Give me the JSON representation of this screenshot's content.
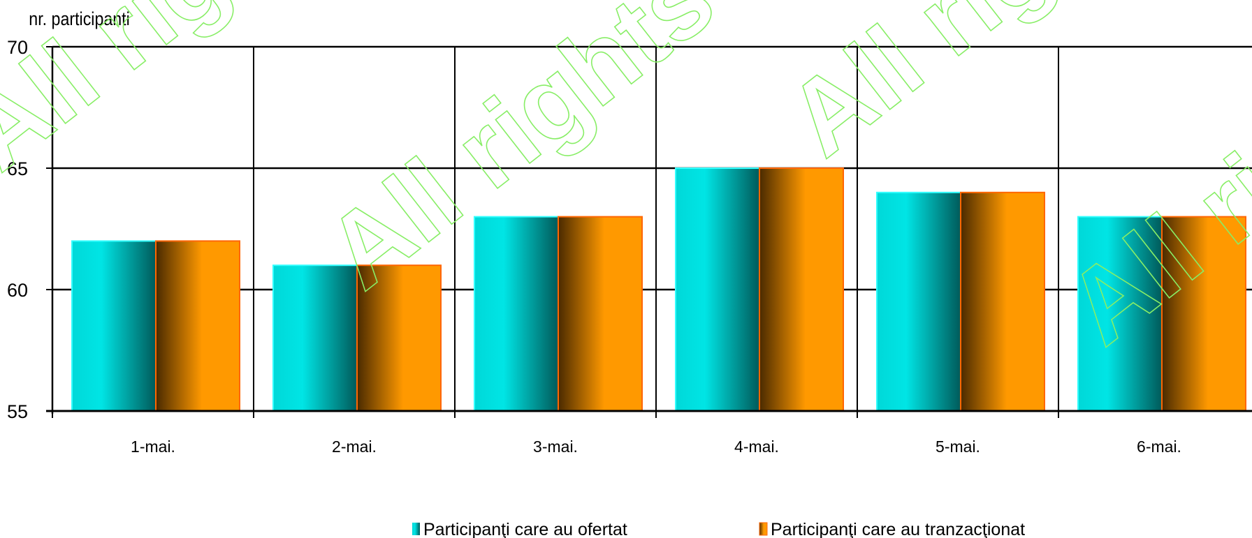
{
  "chart_data": {
    "type": "bar",
    "ylabel": "nr. participanti",
    "xlabel": "",
    "categories": [
      "1-mai.",
      "2-mai.",
      "3-mai.",
      "4-mai.",
      "5-mai.",
      "6-mai."
    ],
    "ylim": [
      55,
      70
    ],
    "yticks": [
      55,
      60,
      65,
      70
    ],
    "grid": true,
    "legend_position": "bottom",
    "series": [
      {
        "name": "Participanţi care au ofertat",
        "values": [
          62,
          61,
          63,
          65,
          64,
          63
        ],
        "color": "#00e5e5"
      },
      {
        "name": "Participanţi care au tranzacţionat",
        "values": [
          62,
          61,
          63,
          65,
          64,
          63
        ],
        "color": "#ff9900"
      }
    ]
  },
  "watermark": {
    "text": "All rights reserved",
    "color": "#88ee66"
  }
}
